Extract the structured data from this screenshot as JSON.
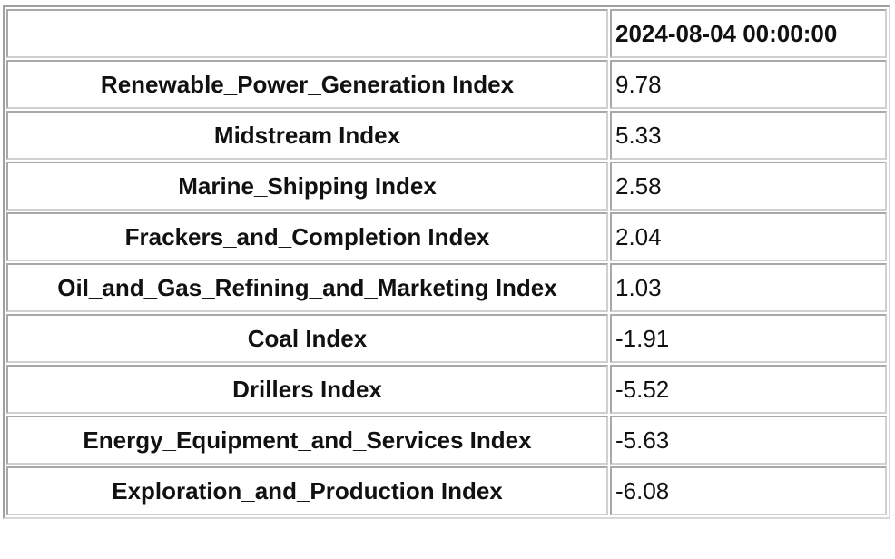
{
  "table": {
    "columns": [
      "2024-08-04 00:00:00"
    ],
    "rows": [
      [
        "Renewable_Power_Generation Index",
        9.78
      ],
      [
        "Midstream Index",
        5.33
      ],
      [
        "Marine_Shipping Index",
        2.58
      ],
      [
        "Frackers_and_Completion Index",
        2.04
      ],
      [
        "Oil_and_Gas_Refining_and_Marketing Index",
        1.03
      ],
      [
        "Coal Index",
        -1.91
      ],
      [
        "Drillers Index",
        -5.52
      ],
      [
        "Energy_Equipment_and_Services Index",
        -5.63
      ],
      [
        "Exploration_and_Production Index",
        -6.08
      ]
    ]
  }
}
